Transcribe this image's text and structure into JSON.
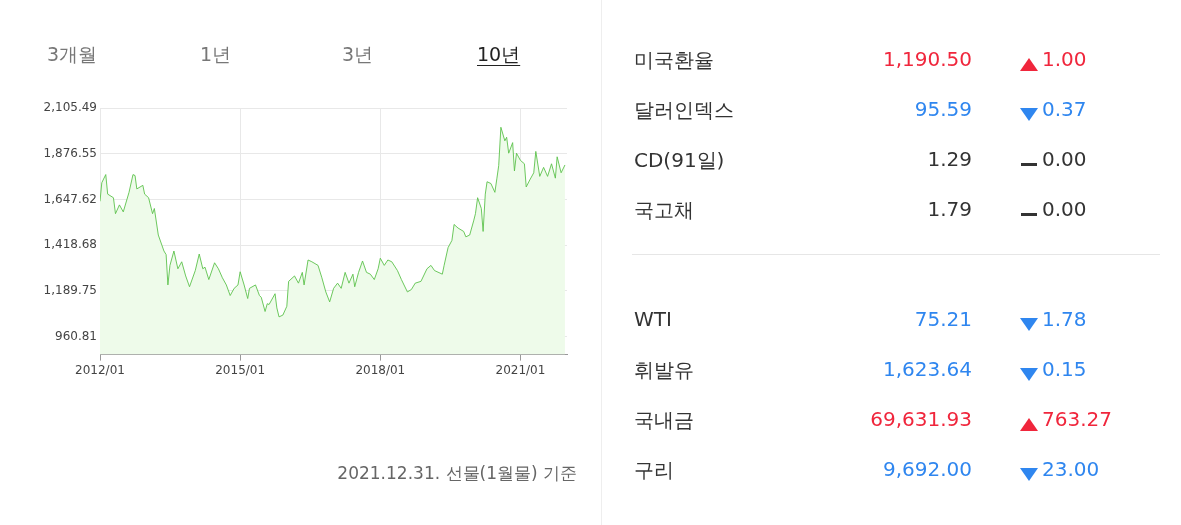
{
  "chart_data": [
    {
      "type": "area",
      "x": [
        "2012-01-01",
        "2012-01-15",
        "2012-02-15",
        "2012-03-01",
        "2012-04-15",
        "2012-05-01",
        "2012-06-01",
        "2012-07-01",
        "2012-08-15",
        "2012-09-15",
        "2012-10-01",
        "2012-10-15",
        "2012-12-01",
        "2012-12-15",
        "2013-01-15",
        "2013-02-15",
        "2013-03-01",
        "2013-04-01",
        "2013-05-15",
        "2013-06-01",
        "2013-06-15",
        "2013-07-01",
        "2013-08-01",
        "2013-09-01",
        "2013-10-01",
        "2013-11-01",
        "2013-12-01",
        "2014-01-15",
        "2014-02-15",
        "2014-03-15",
        "2014-04-01",
        "2014-05-01",
        "2014-06-15",
        "2014-07-15",
        "2014-08-15",
        "2014-09-15",
        "2014-10-15",
        "2014-11-15",
        "2014-12-15",
        "2015-01-01",
        "2015-02-01",
        "2015-03-01",
        "2015-03-15",
        "2015-05-01",
        "2015-06-01",
        "2015-06-15",
        "2015-07-15",
        "2015-08-01",
        "2015-08-15",
        "2015-10-01",
        "2015-10-15",
        "2015-11-01",
        "2015-12-01",
        "2016-01-01",
        "2016-01-15",
        "2016-03-01",
        "2016-04-01",
        "2016-05-01",
        "2016-05-15",
        "2016-06-15",
        "2016-07-15",
        "2016-09-01",
        "2016-10-01",
        "2016-11-01",
        "2016-12-01",
        "2017-01-01",
        "2017-02-01",
        "2017-03-01",
        "2017-04-01",
        "2017-05-01",
        "2017-06-01",
        "2017-06-15",
        "2017-07-15",
        "2017-08-15",
        "2017-09-15",
        "2017-10-15",
        "2017-11-15",
        "2017-12-15",
        "2018-01-01",
        "2018-02-01",
        "2018-03-01",
        "2018-04-01",
        "2018-05-15",
        "2018-06-15",
        "2018-08-01",
        "2018-09-01",
        "2018-10-01",
        "2018-11-15",
        "2019-01-01",
        "2019-02-01",
        "2019-03-01",
        "2019-05-01",
        "2019-05-15",
        "2019-06-15",
        "2019-07-15",
        "2019-08-01",
        "2019-09-01",
        "2019-10-15",
        "2019-11-01",
        "2019-12-01",
        "2020-01-01",
        "2020-01-15",
        "2020-02-01",
        "2020-03-01",
        "2020-03-15",
        "2020-04-01",
        "2020-04-15",
        "2020-05-15",
        "2020-06-15",
        "2020-07-01",
        "2020-07-15",
        "2020-08-01",
        "2020-09-01",
        "2020-09-15",
        "2020-10-01",
        "2020-11-01",
        "2020-11-15",
        "2020-12-01",
        "2021-01-01",
        "2021-02-01",
        "2021-02-15",
        "2021-03-15",
        "2021-04-15",
        "2021-05-01",
        "2021-06-01",
        "2021-07-01",
        "2021-08-01",
        "2021-09-01",
        "2021-10-01",
        "2021-10-15",
        "2021-11-15",
        "2021-12-15"
      ],
      "values": [
        1638,
        1731,
        1772,
        1674,
        1656,
        1576,
        1620,
        1585,
        1683,
        1772,
        1767,
        1700,
        1718,
        1674,
        1656,
        1576,
        1602,
        1469,
        1389,
        1371,
        1219,
        1317,
        1389,
        1300,
        1335,
        1264,
        1210,
        1291,
        1374,
        1300,
        1308,
        1246,
        1330,
        1300,
        1255,
        1219,
        1166,
        1202,
        1219,
        1285,
        1219,
        1151,
        1202,
        1219,
        1166,
        1157,
        1086,
        1125,
        1121,
        1175,
        1104,
        1059,
        1068,
        1112,
        1237,
        1264,
        1228,
        1282,
        1219,
        1344,
        1335,
        1317,
        1255,
        1184,
        1134,
        1202,
        1228,
        1202,
        1282,
        1228,
        1273,
        1210,
        1282,
        1339,
        1282,
        1273,
        1246,
        1300,
        1353,
        1317,
        1344,
        1335,
        1291,
        1246,
        1184,
        1196,
        1228,
        1237,
        1300,
        1317,
        1291,
        1273,
        1317,
        1406,
        1442,
        1522,
        1504,
        1487,
        1460,
        1469,
        1540,
        1576,
        1656,
        1602,
        1487,
        1674,
        1736,
        1727,
        1683,
        1754,
        1817,
        2009,
        1941,
        1959,
        1879,
        1932,
        1790,
        1879,
        1843,
        1826,
        1710,
        1745,
        1781,
        1888,
        1763,
        1808,
        1763,
        1826,
        1754,
        1861,
        1781,
        1820
      ],
      "color": "#5cc24c",
      "xlim": [
        "2012-01-01",
        "2021-12-31"
      ],
      "xticks": [
        {
          "value": "2012-01-01",
          "label": "2012/01"
        },
        {
          "value": "2015-01-01",
          "label": "2015/01"
        },
        {
          "value": "2018-01-01",
          "label": "2018/01"
        },
        {
          "value": "2021-01-01",
          "label": "2021/01"
        }
      ],
      "ylim": [
        870,
        2105.49
      ],
      "yticks": [
        {
          "value": 960.81,
          "label": "960.81"
        },
        {
          "value": 1189.75,
          "label": "1,189.75"
        },
        {
          "value": 1418.68,
          "label": "1,418.68"
        },
        {
          "value": 1647.62,
          "label": "1,647.62"
        },
        {
          "value": 1876.55,
          "label": "1,876.55"
        },
        {
          "value": 2105.49,
          "label": "2,105.49"
        }
      ],
      "grid": true,
      "annotations": [
        "3개월",
        "1년",
        "3년",
        "10년",
        "2021.12.31. 선물(1월물) 기준"
      ]
    },
    {
      "type": "other",
      "categories": [
        "미국환율",
        "달러인덱스",
        "CD(91일)",
        "국고채"
      ],
      "series": [
        {
          "values": [
            1190.5,
            95.59,
            1.29,
            1.79
          ],
          "value_labels": [
            "1,190.50",
            "95.59",
            "1.29",
            "1.79"
          ],
          "colors": [
            "#f0263c",
            "#2f86ef",
            "#333333",
            "#333333"
          ]
        },
        {
          "values": [
            1.0,
            null,
            null,
            null
          ],
          "value_labels": [
            "1.00",
            null,
            null,
            null
          ],
          "color": "#f0263c"
        },
        {
          "values": [
            null,
            0.37,
            null,
            null
          ],
          "value_labels": [
            null,
            "0.37",
            null,
            null
          ],
          "color": "#2f86ef"
        },
        {
          "values": [
            null,
            null,
            0.0,
            0.0
          ],
          "value_labels": [
            null,
            null,
            "0.00",
            "0.00"
          ],
          "color": "#333333"
        }
      ]
    },
    {
      "type": "other",
      "categories": [
        "WTI",
        "휘발유",
        "국내금",
        "구리"
      ],
      "series": [
        {
          "values": [
            75.21,
            1623.64,
            69631.93,
            9692.0
          ],
          "value_labels": [
            "75.21",
            "1,623.64",
            "69,631.93",
            "9,692.00"
          ],
          "colors": [
            "#2f86ef",
            "#2f86ef",
            "#f0263c",
            "#2f86ef"
          ]
        },
        {
          "values": [
            null,
            null,
            763.27,
            null
          ],
          "value_labels": [
            null,
            null,
            "763.27",
            null
          ],
          "color": "#f0263c"
        },
        {
          "values": [
            1.78,
            0.15,
            null,
            23.0
          ],
          "value_labels": [
            "1.78",
            "0.15",
            null,
            "23.00"
          ],
          "color": "#2f86ef"
        }
      ]
    }
  ]
}
